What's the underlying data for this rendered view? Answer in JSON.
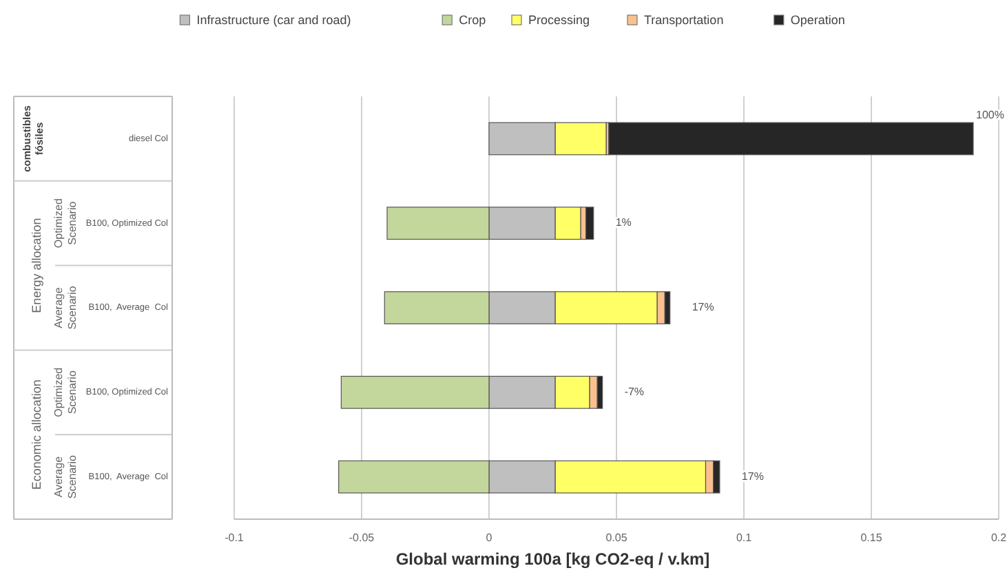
{
  "chart_data": {
    "type": "bar",
    "orientation": "horizontal",
    "stacked": true,
    "xlabel": "Global warming 100a [kg CO2-eq / v.km]",
    "categories": [
      "diesel Col",
      "B100, Optimized Col",
      "B100,  Average  Col",
      "B100, Optimized Col",
      "B100,  Average  Col"
    ],
    "series": [
      {
        "name": "Infrastructure (car and road)",
        "color": "#bfbfbf",
        "values": [
          0.026,
          0.026,
          0.026,
          0.026,
          0.026
        ]
      },
      {
        "name": "Crop",
        "color": "#c3d69b",
        "values": [
          0,
          -0.04,
          -0.041,
          -0.058,
          -0.059
        ]
      },
      {
        "name": "Processing",
        "color": "#ffff66",
        "values": [
          0.02,
          0.01,
          0.04,
          0.0135,
          0.059
        ]
      },
      {
        "name": "Transportation",
        "color": "#fac090",
        "values": [
          0.001,
          0.002,
          0.003,
          0.003,
          0.003
        ]
      },
      {
        "name": "Operation",
        "color": "#262626",
        "values": [
          0.143,
          0.003,
          0.002,
          0.002,
          0.0025
        ]
      }
    ],
    "xlim": [
      -0.1,
      0.2
    ],
    "xticks": [
      -0.1,
      -0.05,
      0,
      0.05,
      0.1,
      0.15,
      0.2
    ],
    "grid": "x",
    "legend": "top",
    "annotations": [
      "100%",
      "1%",
      "17%",
      "-7%",
      "17%",
      "combustibles fósiles",
      "Energy allocation",
      "Economic allocation",
      "Optimized Scenario",
      "Average Scenario",
      "Optimized Scenario",
      "Average Scenario"
    ]
  }
}
